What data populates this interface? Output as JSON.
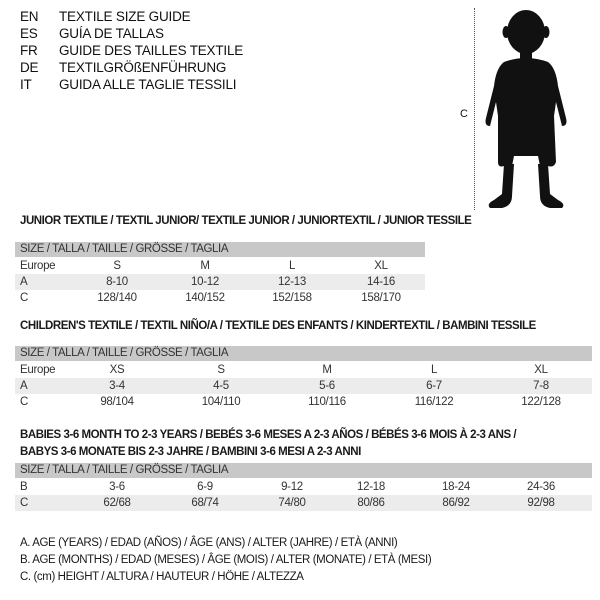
{
  "header": {
    "languages": [
      {
        "code": "EN",
        "text": "TEXTILE SIZE GUIDE"
      },
      {
        "code": "ES",
        "text": "GUÍA DE TALLAS"
      },
      {
        "code": "FR",
        "text": "GUIDE DES TAILLES TEXTILE"
      },
      {
        "code": "DE",
        "text": "TEXTILGRÖßENFÜHRUNG"
      },
      {
        "code": "IT",
        "text": "GUIDA ALLE TAGLIE TESSILI"
      }
    ]
  },
  "figure": {
    "measure_label": "C",
    "icon": "child-silhouette"
  },
  "size_bar_label": "SIZE / TALLA / TAILLE / GRÖSSE / TAGLIA",
  "tables": [
    {
      "title": "JUNIOR TEXTILE / TEXTIL JUNIOR/ TEXTILE JUNIOR / JUNIORTEXTIL / JUNIOR TESSILE",
      "rows": [
        {
          "label": "Europe",
          "values": [
            "S",
            "M",
            "L",
            "XL"
          ]
        },
        {
          "label": "A",
          "values": [
            "8-10",
            "10-12",
            "12-13",
            "14-16"
          ]
        },
        {
          "label": "C",
          "values": [
            "128/140",
            "140/152",
            "152/158",
            "158/170"
          ]
        }
      ]
    },
    {
      "title": "CHILDREN'S TEXTILE / TEXTIL NIÑO/A / TEXTILE DES ENFANTS / KINDERTEXTIL / BAMBINI TESSILE",
      "rows": [
        {
          "label": "Europe",
          "values": [
            "XS",
            "S",
            "M",
            "L",
            "XL"
          ]
        },
        {
          "label": "A",
          "values": [
            "3-4",
            "4-5",
            "5-6",
            "6-7",
            "7-8"
          ]
        },
        {
          "label": "C",
          "values": [
            "98/104",
            "104/110",
            "110/116",
            "116/122",
            "122/128"
          ]
        }
      ]
    },
    {
      "title": "BABIES 3-6 MONTH TO 2-3 YEARS / BEBÉS 3-6 MESES A 2-3 AÑOS / BÉBÉS 3-6 MOIS À 2-3 ANS /",
      "title2": "BABYS 3-6 MONATE BIS 2-3 JAHRE / BAMBINI 3-6 MESI A 2-3 ANNI",
      "rows": [
        {
          "label": "B",
          "values": [
            "3-6",
            "6-9",
            "9-12",
            "12-18",
            "18-24",
            "24-36"
          ]
        },
        {
          "label": "C",
          "values": [
            "62/68",
            "68/74",
            "74/80",
            "80/86",
            "86/92",
            "92/98"
          ]
        }
      ]
    }
  ],
  "legend": [
    "A. AGE (YEARS) / EDAD (AÑOS) / ÂGE (ANS) / ALTER (JAHRE) / ETÀ (ANNI)",
    "B. AGE (MONTHS) / EDAD (MESES) / ÂGE (MOIS) / ALTER (MONATE) / ETÀ (MESI)",
    "C. (cm) HEIGHT / ALTURA / HAUTEUR / HÖHE / ALTEZZA"
  ]
}
